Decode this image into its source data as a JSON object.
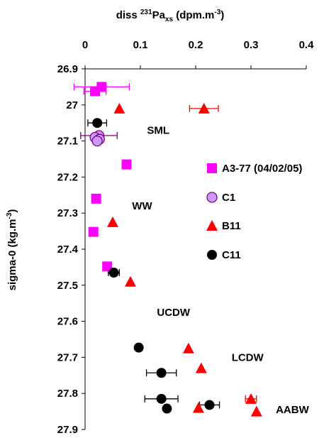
{
  "chart_data": {
    "type": "scatter",
    "title": {
      "prefix": "diss ",
      "sup": "231",
      "main": "Pa",
      "sub": "xs",
      "units_prefix": " (dpm.m",
      "units_sup": "-3",
      "units_suffix": ")"
    },
    "ylabel": {
      "main": "sigma-0 (kg.m",
      "sup": "-3",
      "suffix": ")"
    },
    "x_axis": {
      "position": "top",
      "range": [
        0,
        0.4
      ],
      "ticks": [
        0,
        0.1,
        0.2,
        0.3,
        0.4
      ],
      "tick_labels": [
        "0",
        "0.1",
        "0.2",
        "0.3",
        "0.4"
      ]
    },
    "y_axis": {
      "inverted": true,
      "range": [
        26.9,
        27.9
      ],
      "ticks": [
        26.9,
        27.0,
        27.1,
        27.2,
        27.3,
        27.4,
        27.5,
        27.6,
        27.7,
        27.8,
        27.9
      ],
      "tick_labels": [
        "26.9",
        "27",
        "27.1",
        "27.2",
        "27.3",
        "27.4",
        "27.5",
        "27.6",
        "27.7",
        "27.8",
        "27.9"
      ]
    },
    "grid": false,
    "legend_position": "right",
    "series": [
      {
        "name": "A3-77 (04/02/05)",
        "marker": "square",
        "color": "#ff00ff",
        "points": [
          {
            "x": 0.03,
            "y": 26.95,
            "xerr": 0.05
          },
          {
            "x": 0.018,
            "y": 26.962,
            "xerr": 0.02
          },
          {
            "x": 0.075,
            "y": 27.165
          },
          {
            "x": 0.02,
            "y": 27.26
          },
          {
            "x": 0.015,
            "y": 27.352
          },
          {
            "x": 0.04,
            "y": 27.448
          }
        ]
      },
      {
        "name": "C1",
        "marker": "circle",
        "color": "#cc99ff",
        "edge": "#800080",
        "points": [
          {
            "x": 0.025,
            "y": 27.085,
            "xerr": 0.033
          },
          {
            "x": 0.018,
            "y": 27.09
          },
          {
            "x": 0.026,
            "y": 27.095
          },
          {
            "x": 0.022,
            "y": 27.1
          }
        ]
      },
      {
        "name": "B11",
        "marker": "triangle",
        "color": "#ff0000",
        "points": [
          {
            "x": 0.215,
            "y": 27.01,
            "xerr": 0.026
          },
          {
            "x": 0.062,
            "y": 27.01
          },
          {
            "x": 0.05,
            "y": 27.325
          },
          {
            "x": 0.082,
            "y": 27.49
          },
          {
            "x": 0.187,
            "y": 27.675
          },
          {
            "x": 0.21,
            "y": 27.73
          },
          {
            "x": 0.3,
            "y": 27.815,
            "xerr": 0.01
          },
          {
            "x": 0.205,
            "y": 27.84
          },
          {
            "x": 0.31,
            "y": 27.85
          }
        ]
      },
      {
        "name": "C11",
        "marker": "circle",
        "color": "#000000",
        "points": [
          {
            "x": 0.022,
            "y": 27.05,
            "xerr": 0.017
          },
          {
            "x": 0.052,
            "y": 27.465,
            "xerr": 0.01
          },
          {
            "x": 0.097,
            "y": 27.673
          },
          {
            "x": 0.138,
            "y": 27.743,
            "xerr": 0.027
          },
          {
            "x": 0.138,
            "y": 27.815,
            "xerr": 0.03
          },
          {
            "x": 0.148,
            "y": 27.842
          },
          {
            "x": 0.225,
            "y": 27.832,
            "xerr": 0.018
          }
        ]
      }
    ],
    "annotations": [
      {
        "text": "SML",
        "x": 0.112,
        "y": 27.07
      },
      {
        "text": "WW",
        "x": 0.085,
        "y": 27.28
      },
      {
        "text": "UCDW",
        "x": 0.13,
        "y": 27.575
      },
      {
        "text": "LCDW",
        "x": 0.265,
        "y": 27.7
      },
      {
        "text": "AABW",
        "x": 0.345,
        "y": 27.845
      }
    ]
  }
}
